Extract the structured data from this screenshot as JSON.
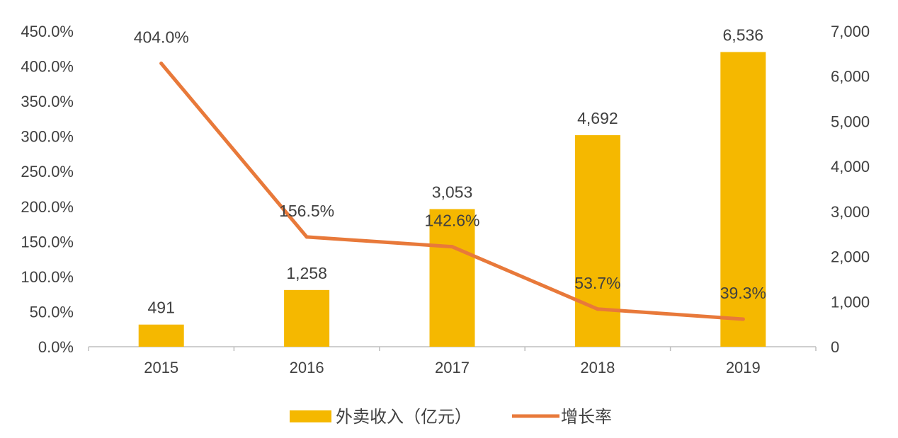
{
  "chart_data": {
    "type": "bar+line",
    "categories": [
      "2015",
      "2016",
      "2017",
      "2018",
      "2019"
    ],
    "series": [
      {
        "name": "外卖收入（亿元）",
        "type": "bar",
        "axis": "right",
        "values": [
          491,
          1258,
          3053,
          4692,
          6536
        ],
        "labels": [
          "491",
          "1,258",
          "3,053",
          "4,692",
          "6,536"
        ],
        "color": "#F5B800"
      },
      {
        "name": "增长率",
        "type": "line",
        "axis": "left",
        "values": [
          404.0,
          156.5,
          142.6,
          53.7,
          39.3
        ],
        "labels": [
          "404.0%",
          "156.5%",
          "142.6%",
          "53.7%",
          "39.3%"
        ],
        "color": "#E8793A"
      }
    ],
    "left_axis": {
      "ylim": [
        0,
        450
      ],
      "ticks": [
        "0.0%",
        "50.0%",
        "100.0%",
        "150.0%",
        "200.0%",
        "250.0%",
        "300.0%",
        "350.0%",
        "400.0%",
        "450.0%"
      ]
    },
    "right_axis": {
      "ylim": [
        0,
        7000
      ],
      "ticks": [
        "0",
        "1,000",
        "2,000",
        "3,000",
        "4,000",
        "5,000",
        "6,000",
        "7,000"
      ]
    },
    "grid": false,
    "legend_position": "bottom-center"
  }
}
